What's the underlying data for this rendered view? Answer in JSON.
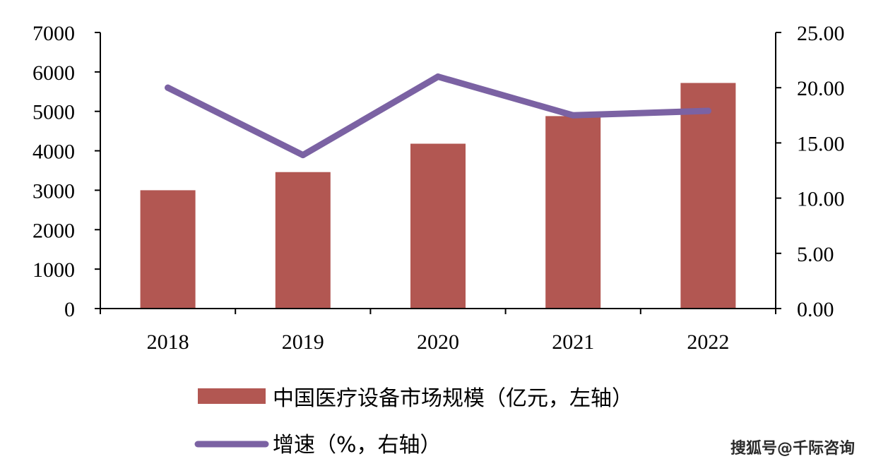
{
  "chart_data": {
    "type": "bar",
    "categories": [
      "2018",
      "2019",
      "2020",
      "2021",
      "2022"
    ],
    "series": [
      {
        "name": "中国医疗设备市场规模（亿元，左轴）",
        "type": "bar",
        "axis": "left",
        "color": "#b25752",
        "values": [
          3000,
          3460,
          4180,
          4880,
          5720
        ]
      },
      {
        "name": "增速（%，右轴）",
        "type": "line",
        "axis": "right",
        "color": "#7b62a3",
        "values": [
          20.0,
          13.9,
          21.0,
          17.5,
          17.9
        ]
      }
    ],
    "y_left": {
      "min": 0,
      "max": 7000,
      "step": 1000,
      "tick_labels": [
        "0",
        "1000",
        "2000",
        "3000",
        "4000",
        "5000",
        "6000",
        "7000"
      ]
    },
    "y_right": {
      "min": 0,
      "max": 25,
      "step": 5,
      "tick_labels": [
        "0.00",
        "5.00",
        "10.00",
        "15.00",
        "20.00",
        "25.00"
      ]
    },
    "grid": false,
    "legend_position": "bottom"
  },
  "watermark": "搜狐号@千际咨询"
}
